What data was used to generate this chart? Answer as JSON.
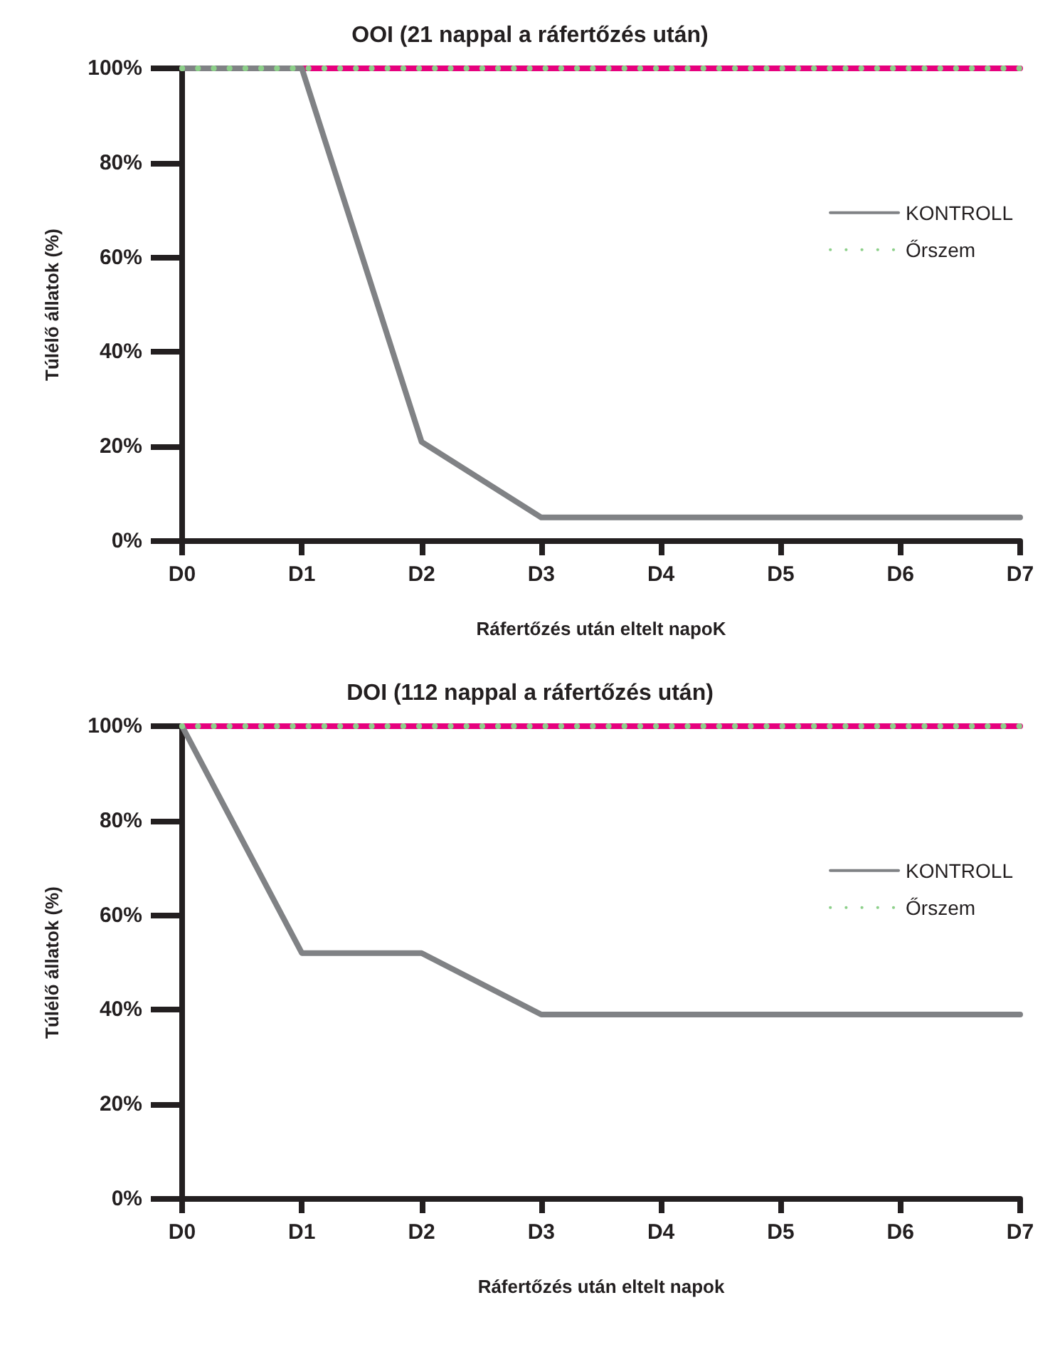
{
  "chart_data": [
    {
      "type": "line",
      "title": "OOI (21 nappal a ráfertőzés után)",
      "xlabel": "Ráfertőzés után eltelt napoK",
      "ylabel": "Túlélő állatok (%)",
      "categories": [
        "D0",
        "D1",
        "D2",
        "D3",
        "D4",
        "D5",
        "D6",
        "D7"
      ],
      "ylim": [
        0,
        100
      ],
      "yticks": [
        {
          "value": 0,
          "label": "0%"
        },
        {
          "value": 20,
          "label": "20%"
        },
        {
          "value": 40,
          "label": "40%"
        },
        {
          "value": 60,
          "label": "60%"
        },
        {
          "value": 80,
          "label": "80%"
        },
        {
          "value": 100,
          "label": "100%"
        }
      ],
      "grid": false,
      "legend": "right",
      "marker": "none",
      "series": [
        {
          "color": "#e6007e",
          "line_style": "solid",
          "values": [
            100,
            100,
            100,
            100,
            100,
            100,
            100,
            100
          ]
        },
        {
          "name": "KONTROLL",
          "color": "#808285",
          "line_style": "solid",
          "values": [
            100,
            100,
            21,
            5,
            5,
            5,
            5,
            5
          ]
        },
        {
          "name": "Őrszem",
          "color": "#8dd08a",
          "line_style": "dotted",
          "values": [
            100,
            100,
            100,
            100,
            100,
            100,
            100,
            100
          ]
        }
      ]
    },
    {
      "type": "line",
      "title": "DOI (112 nappal a ráfertőzés után)",
      "xlabel": "Ráfertőzés után eltelt napok",
      "ylabel": "Túlélő állatok (%)",
      "categories": [
        "D0",
        "D1",
        "D2",
        "D3",
        "D4",
        "D5",
        "D6",
        "D7"
      ],
      "ylim": [
        0,
        100
      ],
      "yticks": [
        {
          "value": 0,
          "label": "0%"
        },
        {
          "value": 20,
          "label": "20%"
        },
        {
          "value": 40,
          "label": "40%"
        },
        {
          "value": 60,
          "label": "60%"
        },
        {
          "value": 80,
          "label": "80%"
        },
        {
          "value": 100,
          "label": "100%"
        }
      ],
      "grid": false,
      "legend": "right",
      "marker": "none",
      "series": [
        {
          "color": "#e6007e",
          "line_style": "solid",
          "values": [
            100,
            100,
            100,
            100,
            100,
            100,
            100,
            100
          ]
        },
        {
          "name": "KONTROLL",
          "color": "#808285",
          "line_style": "solid",
          "values": [
            100,
            52,
            52,
            39,
            39,
            39,
            39,
            39
          ]
        },
        {
          "name": "Őrszem",
          "color": "#8dd08a",
          "line_style": "dotted",
          "values": [
            100,
            100,
            100,
            100,
            100,
            100,
            100,
            100
          ]
        }
      ]
    }
  ]
}
